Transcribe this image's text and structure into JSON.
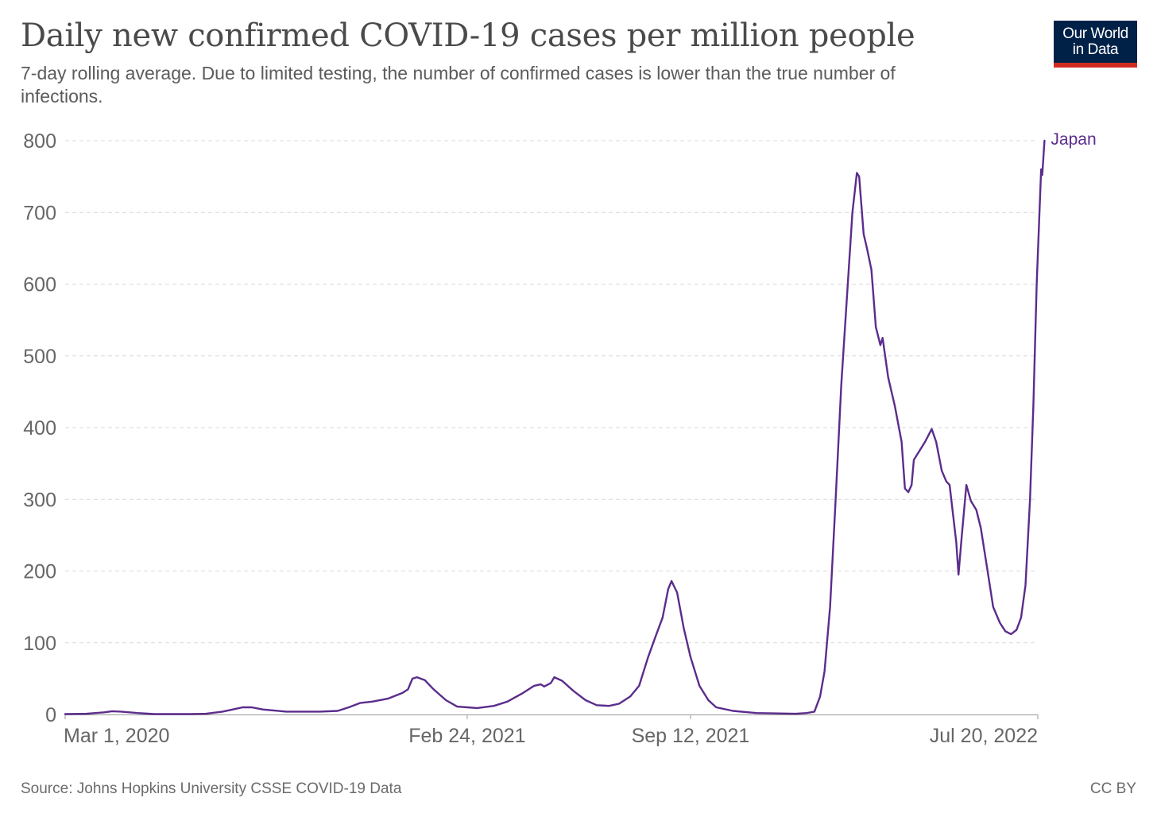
{
  "header": {
    "title": "Daily new confirmed COVID-19 cases per million people",
    "subtitle": "7-day rolling average. Due to limited testing, the number of confirmed cases is lower than the true number of infections."
  },
  "logo": {
    "line1": "Our World",
    "line2": "in Data"
  },
  "footer": {
    "source": "Source: Johns Hopkins University CSSE COVID-19 Data",
    "license": "CC BY"
  },
  "colors": {
    "series": "#5b2c8c",
    "grid": "#d9d9d9",
    "axis_text": "#666666",
    "logo_bg": "#002147",
    "logo_accent": "#d42b21"
  },
  "chart_data": {
    "type": "line",
    "title": "Daily new confirmed COVID-19 cases per million people",
    "ylim": [
      0,
      800
    ],
    "yticks": [
      0,
      100,
      200,
      300,
      400,
      500,
      600,
      700,
      800
    ],
    "xlim": [
      "2020-03-01",
      "2022-07-27"
    ],
    "xticks": [
      {
        "date": "2020-03-01",
        "label": "Mar 1, 2020"
      },
      {
        "date": "2021-02-24",
        "label": "Feb 24, 2021"
      },
      {
        "date": "2021-09-12",
        "label": "Sep 12, 2021"
      },
      {
        "date": "2022-07-20",
        "label": "Jul 20, 2022"
      }
    ],
    "grid": "horizontal dashed",
    "series": [
      {
        "name": "Japan",
        "color": "#5b2c8c",
        "points": [
          [
            "2020-03-01",
            0.5
          ],
          [
            "2020-03-20",
            1
          ],
          [
            "2020-04-05",
            3
          ],
          [
            "2020-04-12",
            4.5
          ],
          [
            "2020-04-20",
            4
          ],
          [
            "2020-05-05",
            2
          ],
          [
            "2020-05-20",
            0.5
          ],
          [
            "2020-06-20",
            0.5
          ],
          [
            "2020-07-05",
            1
          ],
          [
            "2020-07-20",
            4
          ],
          [
            "2020-08-01",
            8
          ],
          [
            "2020-08-07",
            10
          ],
          [
            "2020-08-15",
            10
          ],
          [
            "2020-08-25",
            7
          ],
          [
            "2020-09-15",
            4
          ],
          [
            "2020-10-15",
            4
          ],
          [
            "2020-10-31",
            5
          ],
          [
            "2020-11-10",
            10
          ],
          [
            "2020-11-20",
            16
          ],
          [
            "2020-12-01",
            18
          ],
          [
            "2020-12-15",
            22
          ],
          [
            "2020-12-28",
            30
          ],
          [
            "2021-01-02",
            35
          ],
          [
            "2021-01-06",
            50
          ],
          [
            "2021-01-10",
            52
          ],
          [
            "2021-01-17",
            48
          ],
          [
            "2021-01-25",
            35
          ],
          [
            "2021-02-05",
            20
          ],
          [
            "2021-02-15",
            11
          ],
          [
            "2021-02-24",
            10
          ],
          [
            "2021-03-05",
            9
          ],
          [
            "2021-03-20",
            12
          ],
          [
            "2021-04-01",
            18
          ],
          [
            "2021-04-15",
            30
          ],
          [
            "2021-04-25",
            40
          ],
          [
            "2021-05-01",
            42
          ],
          [
            "2021-05-04",
            39
          ],
          [
            "2021-05-10",
            44
          ],
          [
            "2021-05-13",
            52
          ],
          [
            "2021-05-20",
            47
          ],
          [
            "2021-05-30",
            33
          ],
          [
            "2021-06-10",
            20
          ],
          [
            "2021-06-20",
            13
          ],
          [
            "2021-07-01",
            12
          ],
          [
            "2021-07-10",
            15
          ],
          [
            "2021-07-20",
            25
          ],
          [
            "2021-07-28",
            40
          ],
          [
            "2021-08-05",
            80
          ],
          [
            "2021-08-12",
            110
          ],
          [
            "2021-08-18",
            135
          ],
          [
            "2021-08-23",
            175
          ],
          [
            "2021-08-26",
            186
          ],
          [
            "2021-08-31",
            170
          ],
          [
            "2021-09-06",
            120
          ],
          [
            "2021-09-12",
            80
          ],
          [
            "2021-09-20",
            40
          ],
          [
            "2021-09-28",
            20
          ],
          [
            "2021-10-05",
            10
          ],
          [
            "2021-10-20",
            5
          ],
          [
            "2021-11-10",
            2
          ],
          [
            "2021-12-15",
            1
          ],
          [
            "2021-12-25",
            2
          ],
          [
            "2022-01-01",
            4
          ],
          [
            "2022-01-06",
            25
          ],
          [
            "2022-01-10",
            60
          ],
          [
            "2022-01-15",
            150
          ],
          [
            "2022-01-20",
            300
          ],
          [
            "2022-01-25",
            460
          ],
          [
            "2022-01-30",
            580
          ],
          [
            "2022-02-04",
            700
          ],
          [
            "2022-02-08",
            755
          ],
          [
            "2022-02-10",
            750
          ],
          [
            "2022-02-14",
            670
          ],
          [
            "2022-02-17",
            650
          ],
          [
            "2022-02-21",
            620
          ],
          [
            "2022-02-25",
            540
          ],
          [
            "2022-03-01",
            515
          ],
          [
            "2022-03-03",
            525
          ],
          [
            "2022-03-08",
            470
          ],
          [
            "2022-03-14",
            430
          ],
          [
            "2022-03-20",
            380
          ],
          [
            "2022-03-23",
            315
          ],
          [
            "2022-03-26",
            310
          ],
          [
            "2022-03-29",
            320
          ],
          [
            "2022-03-31",
            355
          ],
          [
            "2022-04-04",
            365
          ],
          [
            "2022-04-10",
            380
          ],
          [
            "2022-04-16",
            398
          ],
          [
            "2022-04-20",
            380
          ],
          [
            "2022-04-25",
            340
          ],
          [
            "2022-04-29",
            325
          ],
          [
            "2022-05-02",
            320
          ],
          [
            "2022-05-05",
            280
          ],
          [
            "2022-05-08",
            240
          ],
          [
            "2022-05-10",
            195
          ],
          [
            "2022-05-13",
            250
          ],
          [
            "2022-05-17",
            320
          ],
          [
            "2022-05-21",
            298
          ],
          [
            "2022-05-26",
            285
          ],
          [
            "2022-05-30",
            260
          ],
          [
            "2022-06-05",
            200
          ],
          [
            "2022-06-10",
            150
          ],
          [
            "2022-06-16",
            128
          ],
          [
            "2022-06-21",
            116
          ],
          [
            "2022-06-26",
            112
          ],
          [
            "2022-07-01",
            118
          ],
          [
            "2022-07-05",
            135
          ],
          [
            "2022-07-09",
            180
          ],
          [
            "2022-07-13",
            300
          ],
          [
            "2022-07-16",
            430
          ],
          [
            "2022-07-19",
            600
          ],
          [
            "2022-07-22",
            720
          ],
          [
            "2022-07-23",
            760
          ],
          [
            "2022-07-24",
            752
          ],
          [
            "2022-07-26",
            800
          ]
        ]
      }
    ]
  }
}
